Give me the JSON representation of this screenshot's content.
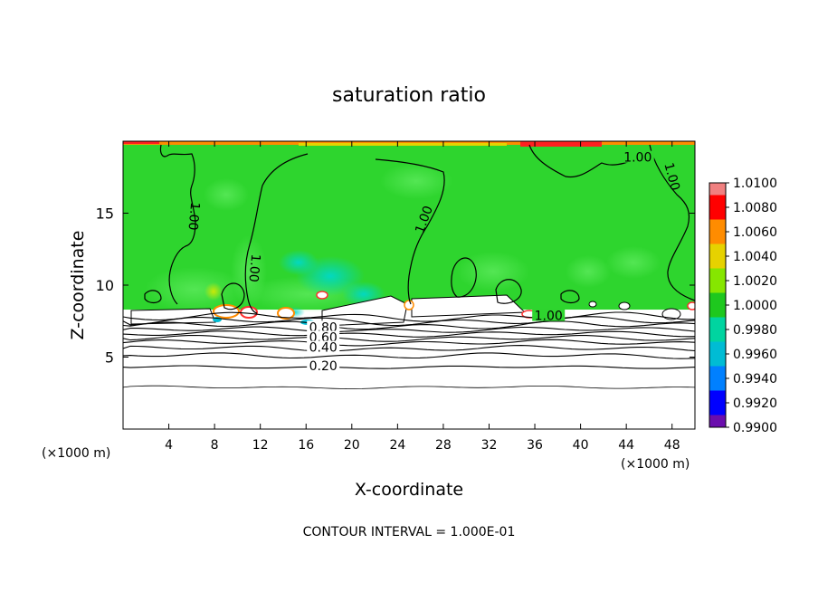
{
  "chart_data": {
    "type": "heatmap",
    "title": "saturation ratio",
    "xlabel": "X-coordinate",
    "ylabel": "Z-coordinate",
    "x_unit_left": "(×1000 m)",
    "x_unit_right": "(×1000 m)",
    "xlim": [
      0,
      50
    ],
    "ylim": [
      0,
      20
    ],
    "x_ticks": [
      4,
      8,
      12,
      16,
      20,
      24,
      28,
      32,
      36,
      40,
      44,
      48
    ],
    "y_ticks": [
      5,
      10,
      15
    ],
    "footer": "CONTOUR INTERVAL = 1.000E-01",
    "colorbar": {
      "levels": [
        "1.0100",
        "1.0080",
        "1.0060",
        "1.0040",
        "1.0020",
        "1.0000",
        "0.9980",
        "0.9960",
        "0.9940",
        "0.9920",
        "0.9900"
      ],
      "colors": [
        "#f08080",
        "#ff0000",
        "#ff8c00",
        "#e6d200",
        "#86e600",
        "#1ec81e",
        "#00d4a0",
        "#00bcd4",
        "#0080ff",
        "#0000ff",
        "#6a0dad"
      ]
    },
    "contour_labels": [
      {
        "text": "1.00",
        "x": 6.0,
        "y": 14.8,
        "angle": 95
      },
      {
        "text": "1.00",
        "x": 11.3,
        "y": 11.2,
        "angle": 95
      },
      {
        "text": "1.00",
        "x": 26.5,
        "y": 14.5,
        "angle": -70
      },
      {
        "text": "1.00",
        "x": 45.0,
        "y": 18.7,
        "angle": 0
      },
      {
        "text": "1.00",
        "x": 47.8,
        "y": 17.5,
        "angle": 75
      },
      {
        "text": "1.00",
        "x": 37.2,
        "y": 7.7,
        "angle": 0
      },
      {
        "text": "0.80",
        "x": 17.5,
        "y": 6.9,
        "angle": 0
      },
      {
        "text": "0.60",
        "x": 17.5,
        "y": 6.2,
        "angle": 0
      },
      {
        "text": "0.40",
        "x": 17.5,
        "y": 5.5,
        "angle": 0
      },
      {
        "text": "0.20",
        "x": 17.5,
        "y": 4.2,
        "angle": 0
      }
    ],
    "cloud_base_z": 8.3,
    "contours_below": [
      7.8,
      7.5,
      7.2,
      6.9,
      6.6,
      6.3,
      6.0,
      5.6,
      5.1,
      4.3,
      2.9
    ],
    "grid": false
  }
}
